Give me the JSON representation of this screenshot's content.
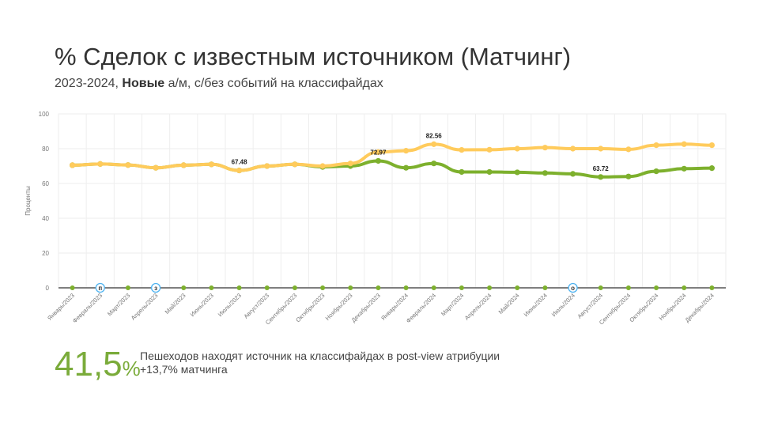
{
  "header": {
    "title": "% Сделок с известным источником (Матчинг)",
    "subtitle_prefix": "2023-2024, ",
    "subtitle_bold": "Новые",
    "subtitle_rest": " а/м, с/без событий на классифайдах"
  },
  "chart_data": {
    "type": "line",
    "ylabel": "Проценты",
    "ylim": [
      0,
      100
    ],
    "yticks": [
      0,
      20,
      40,
      60,
      80,
      100
    ],
    "grid": true,
    "categories": [
      "Январь/2023",
      "Февраль/2023",
      "Март/2023",
      "Апрель/2023",
      "Май/2023",
      "Июнь/2023",
      "Июль/2023",
      "Август/2023",
      "Сентябрь/2023",
      "Октябрь/2023",
      "Ноябрь/2023",
      "Декабрь/2023",
      "Январь/2024",
      "Февраль/2024",
      "Март/2024",
      "Апрель/2024",
      "Май/2024",
      "Июнь/2024",
      "Июль/2024",
      "Август/2024",
      "Сентябрь/2024",
      "Октябрь/2024",
      "Ноябрь/2024",
      "Декабрь/2024"
    ],
    "series": [
      {
        "color": "#7DB02D",
        "values": [
          70.5,
          71.2,
          70.6,
          69.0,
          70.5,
          71.0,
          67.48,
          70.0,
          71.0,
          69.5,
          70.0,
          72.97,
          69.0,
          71.5,
          66.6,
          66.6,
          66.4,
          66.0,
          65.5,
          63.72,
          64.0,
          67.0,
          68.5,
          68.8
        ]
      },
      {
        "color": "#FFCB5C",
        "values": [
          70.5,
          71.2,
          70.6,
          69.0,
          70.5,
          71.0,
          67.48,
          70.0,
          71.0,
          70.0,
          71.5,
          78.0,
          78.8,
          82.56,
          79.3,
          79.4,
          80.0,
          80.6,
          80.0,
          80.0,
          79.6,
          82.0,
          82.6,
          82.0
        ]
      },
      {
        "color": "#7DB02D",
        "values": [
          0,
          0,
          0,
          0,
          0,
          0,
          0,
          0,
          0,
          0,
          0,
          0,
          0,
          0,
          0,
          0,
          0,
          0,
          0,
          0,
          0,
          0,
          0,
          0
        ]
      }
    ],
    "data_labels": [
      {
        "category": "Июль/2023",
        "value": 67.48,
        "text": "67.48"
      },
      {
        "category": "Декабрь/2023",
        "value": 72.97,
        "text": "72.97"
      },
      {
        "category": "Февраль/2024",
        "value": 82.56,
        "text": "82.56"
      },
      {
        "category": "Август/2024",
        "value": 63.72,
        "text": "63.72"
      }
    ],
    "event_markers": [
      {
        "category": "Февраль/2023",
        "text": "п",
        "color": "#4FB3F0"
      },
      {
        "category": "Апрель/2023",
        "text": "з",
        "color": "#4FB3F0"
      },
      {
        "category": "Июль/2024",
        "text": "о",
        "color": "#4FB3F0"
      }
    ]
  },
  "summary": {
    "big_number": "41,5",
    "big_unit": "%",
    "line1": "Пешеходов находят источник на классифайдах в post-view атрибуции",
    "line2": "+13,7% матчинга",
    "accent": "#7AAB3A"
  }
}
